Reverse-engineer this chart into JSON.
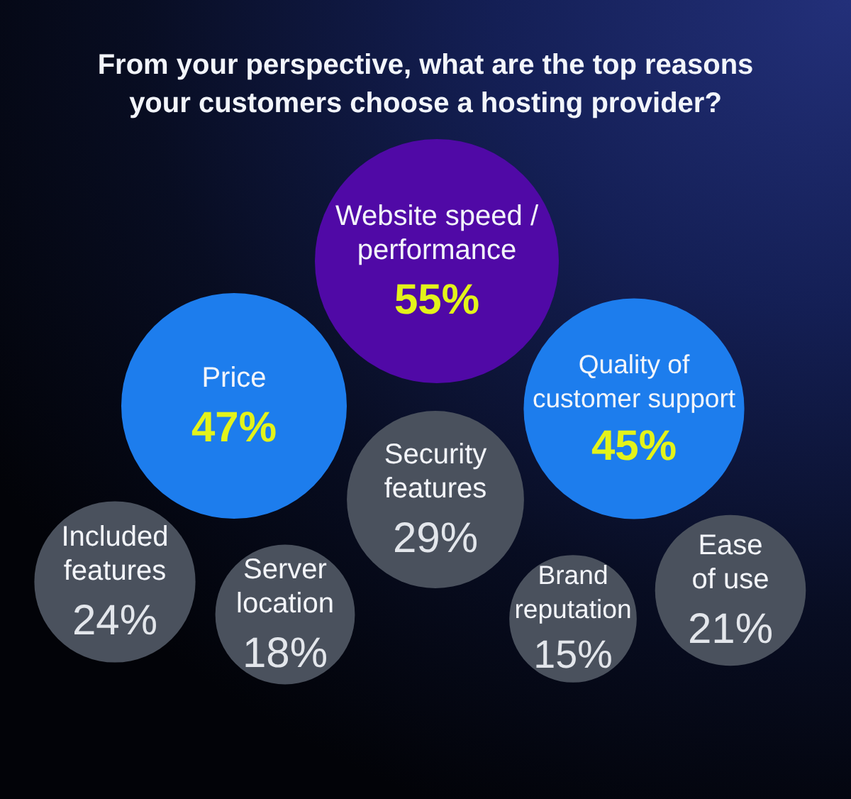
{
  "chart_data": {
    "type": "other",
    "title": "From your perspective, what are the top reasons your customers choose a hosting provider?",
    "categories": [
      "Website speed / performance",
      "Price",
      "Quality of customer support",
      "Security features",
      "Included features",
      "Ease of use",
      "Server location",
      "Brand reputation"
    ],
    "values": [
      55,
      47,
      45,
      29,
      24,
      21,
      18,
      15
    ],
    "value_labels": [
      "55%",
      "47%",
      "45%",
      "29%",
      "24%",
      "21%",
      "18%",
      "15%"
    ],
    "colors": [
      "#5009a6",
      "#1d7ded",
      "#1d7ded",
      "#4a515d",
      "#4a515d",
      "#4a515d",
      "#4a515d",
      "#4a515d"
    ]
  }
}
